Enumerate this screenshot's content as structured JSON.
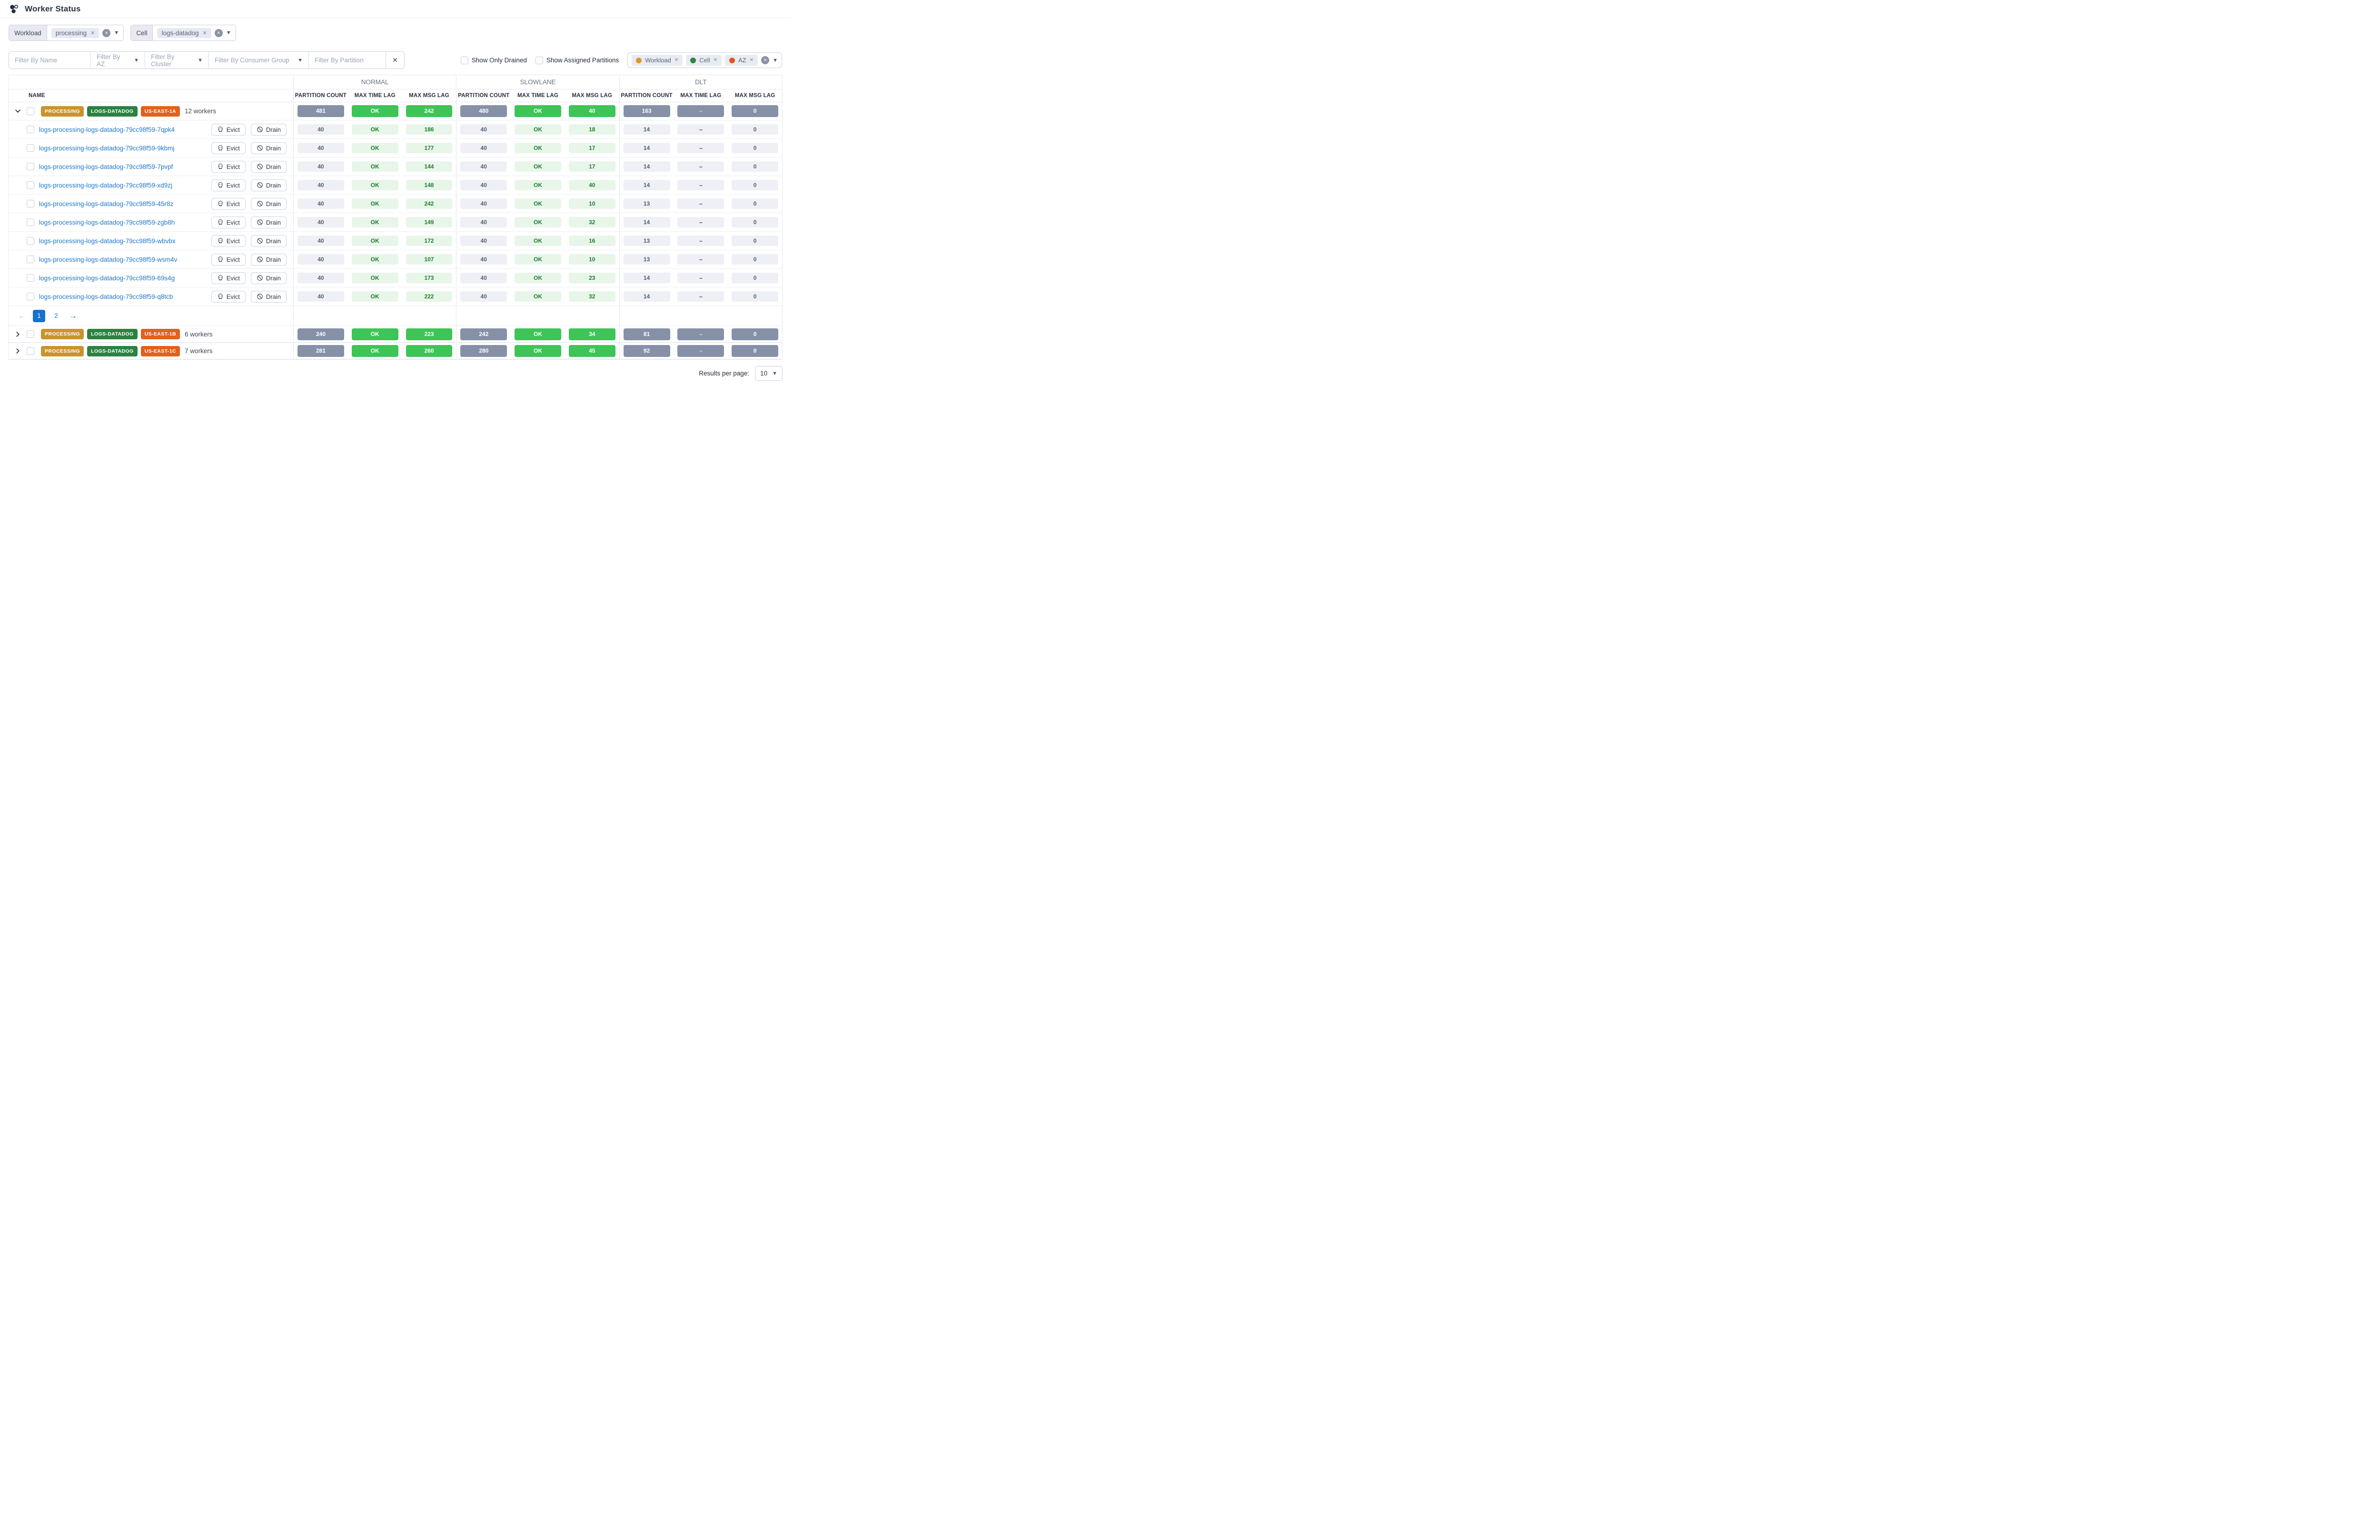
{
  "header": {
    "title": "Worker Status"
  },
  "query_filters": [
    {
      "label": "Workload",
      "value": "processing",
      "remove_icon": "✕"
    },
    {
      "label": "Cell",
      "value": "logs-datadog",
      "remove_icon": "✕"
    }
  ],
  "filters": {
    "name_placeholder": "Filter By Name",
    "az_placeholder": "Filter By AZ",
    "cluster_placeholder": "Filter By Cluster",
    "consumer_group_placeholder": "Filter By Consumer Group",
    "partition_placeholder": "Filter By Partition",
    "clear_label": "✕"
  },
  "toggles": [
    {
      "label": "Show Only Drained",
      "checked": false
    },
    {
      "label": "Show Assigned Partitions",
      "checked": false
    }
  ],
  "group_by_pills": {
    "items": [
      {
        "label": "Workload",
        "color": "#D99A27"
      },
      {
        "label": "Cell",
        "color": "#2F8540"
      },
      {
        "label": "AZ",
        "color": "#E0571B"
      }
    ],
    "remove_icon": "✕"
  },
  "colors": {
    "solid_gray": "#8691A8",
    "solid_green": "#3EC457",
    "pale_gray_bg": "#EEF0F5",
    "pale_gray_text": "#525C6E",
    "pale_green_bg": "#E8F6EA",
    "pale_green_text": "#1F7A2E",
    "link_blue": "#1F78CB",
    "active_page_blue": "#1672CE"
  },
  "table": {
    "name_header": "NAME",
    "lanes": [
      "NORMAL",
      "SLOWLANE",
      "DLT"
    ],
    "sub_columns": [
      "PARTITION COUNT",
      "MAX TIME LAG",
      "MAX MSG LAG"
    ],
    "actions": {
      "evict": "Evict",
      "drain": "Drain"
    },
    "groups": [
      {
        "badges": [
          {
            "text": "PROCESSING",
            "color": "#C9942D"
          },
          {
            "text": "LOGS-DATADOG",
            "color": "#2B8240"
          },
          {
            "text": "US-EAST-1A",
            "color": "#E2611C"
          }
        ],
        "workers_label": "12 workers",
        "expanded": true,
        "stats": {
          "normal": [
            "481",
            "OK",
            "242"
          ],
          "slowlane": [
            "480",
            "OK",
            "40"
          ],
          "dlt": [
            "163",
            "–",
            "0"
          ]
        },
        "rows": [
          {
            "name": "logs-processing-logs-datadog-79cc98f59-7qpk4",
            "normal": [
              "40",
              "OK",
              "186"
            ],
            "slowlane": [
              "40",
              "OK",
              "18"
            ],
            "dlt": [
              "14",
              "–",
              "0"
            ]
          },
          {
            "name": "logs-processing-logs-datadog-79cc98f59-9kbmj",
            "normal": [
              "40",
              "OK",
              "177"
            ],
            "slowlane": [
              "40",
              "OK",
              "17"
            ],
            "dlt": [
              "14",
              "–",
              "0"
            ]
          },
          {
            "name": "logs-processing-logs-datadog-79cc98f59-7pvpf",
            "normal": [
              "40",
              "OK",
              "144"
            ],
            "slowlane": [
              "40",
              "OK",
              "17"
            ],
            "dlt": [
              "14",
              "–",
              "0"
            ]
          },
          {
            "name": "logs-processing-logs-datadog-79cc98f59-xd9zj",
            "normal": [
              "40",
              "OK",
              "148"
            ],
            "slowlane": [
              "40",
              "OK",
              "40"
            ],
            "dlt": [
              "14",
              "–",
              "0"
            ]
          },
          {
            "name": "logs-processing-logs-datadog-79cc98f59-45r8z",
            "normal": [
              "40",
              "OK",
              "242"
            ],
            "slowlane": [
              "40",
              "OK",
              "10"
            ],
            "dlt": [
              "13",
              "–",
              "0"
            ]
          },
          {
            "name": "logs-processing-logs-datadog-79cc98f59-zgb8h",
            "normal": [
              "40",
              "OK",
              "149"
            ],
            "slowlane": [
              "40",
              "OK",
              "32"
            ],
            "dlt": [
              "14",
              "–",
              "0"
            ]
          },
          {
            "name": "logs-processing-logs-datadog-79cc98f59-wbvbx",
            "normal": [
              "40",
              "OK",
              "172"
            ],
            "slowlane": [
              "40",
              "OK",
              "16"
            ],
            "dlt": [
              "13",
              "–",
              "0"
            ]
          },
          {
            "name": "logs-processing-logs-datadog-79cc98f59-wsm4v",
            "normal": [
              "40",
              "OK",
              "107"
            ],
            "slowlane": [
              "40",
              "OK",
              "10"
            ],
            "dlt": [
              "13",
              "–",
              "0"
            ]
          },
          {
            "name": "logs-processing-logs-datadog-79cc98f59-69s4g",
            "normal": [
              "40",
              "OK",
              "173"
            ],
            "slowlane": [
              "40",
              "OK",
              "23"
            ],
            "dlt": [
              "14",
              "–",
              "0"
            ]
          },
          {
            "name": "logs-processing-logs-datadog-79cc98f59-q8tcb",
            "normal": [
              "40",
              "OK",
              "222"
            ],
            "slowlane": [
              "40",
              "OK",
              "32"
            ],
            "dlt": [
              "14",
              "–",
              "0"
            ]
          }
        ]
      },
      {
        "badges": [
          {
            "text": "PROCESSING",
            "color": "#C9942D"
          },
          {
            "text": "LOGS-DATADOG",
            "color": "#2B8240"
          },
          {
            "text": "US-EAST-1B",
            "color": "#E2611C"
          }
        ],
        "workers_label": "6 workers",
        "expanded": false,
        "stats": {
          "normal": [
            "240",
            "OK",
            "223"
          ],
          "slowlane": [
            "242",
            "OK",
            "34"
          ],
          "dlt": [
            "81",
            "–",
            "0"
          ]
        }
      },
      {
        "badges": [
          {
            "text": "PROCESSING",
            "color": "#C9942D"
          },
          {
            "text": "LOGS-DATADOG",
            "color": "#2B8240"
          },
          {
            "text": "US-EAST-1C",
            "color": "#E2611C"
          }
        ],
        "workers_label": "7 workers",
        "expanded": false,
        "stats": {
          "normal": [
            "281",
            "OK",
            "260"
          ],
          "slowlane": [
            "280",
            "OK",
            "45"
          ],
          "dlt": [
            "92",
            "–",
            "0"
          ]
        }
      }
    ],
    "pagination": {
      "pages": [
        "1",
        "2"
      ],
      "active_page": "1"
    }
  },
  "footer": {
    "results_per_page_label": "Results per page:",
    "results_per_page_value": "10"
  }
}
